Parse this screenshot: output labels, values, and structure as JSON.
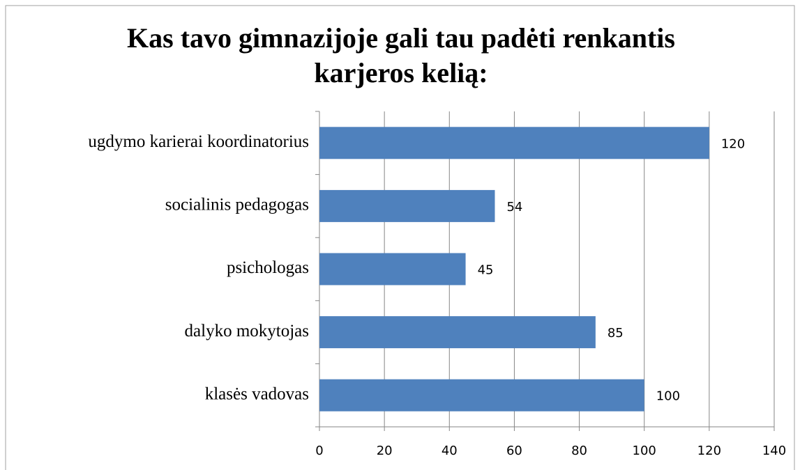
{
  "chart_data": {
    "type": "bar",
    "orientation": "horizontal",
    "title": "Kas tavo gimnazijoje gali tau padėti renkantis karjeros kelią:",
    "categories": [
      "ugdymo karierai koordinatorius",
      "socialinis pedagogas",
      "psichologas",
      "dalyko mokytojas",
      "klasės vadovas"
    ],
    "values": [
      120,
      54,
      45,
      85,
      100
    ],
    "color": "#4f81bd",
    "xlim": [
      0,
      140
    ],
    "xticks": [
      0,
      20,
      40,
      60,
      80,
      100,
      120,
      140
    ],
    "grid": true
  }
}
